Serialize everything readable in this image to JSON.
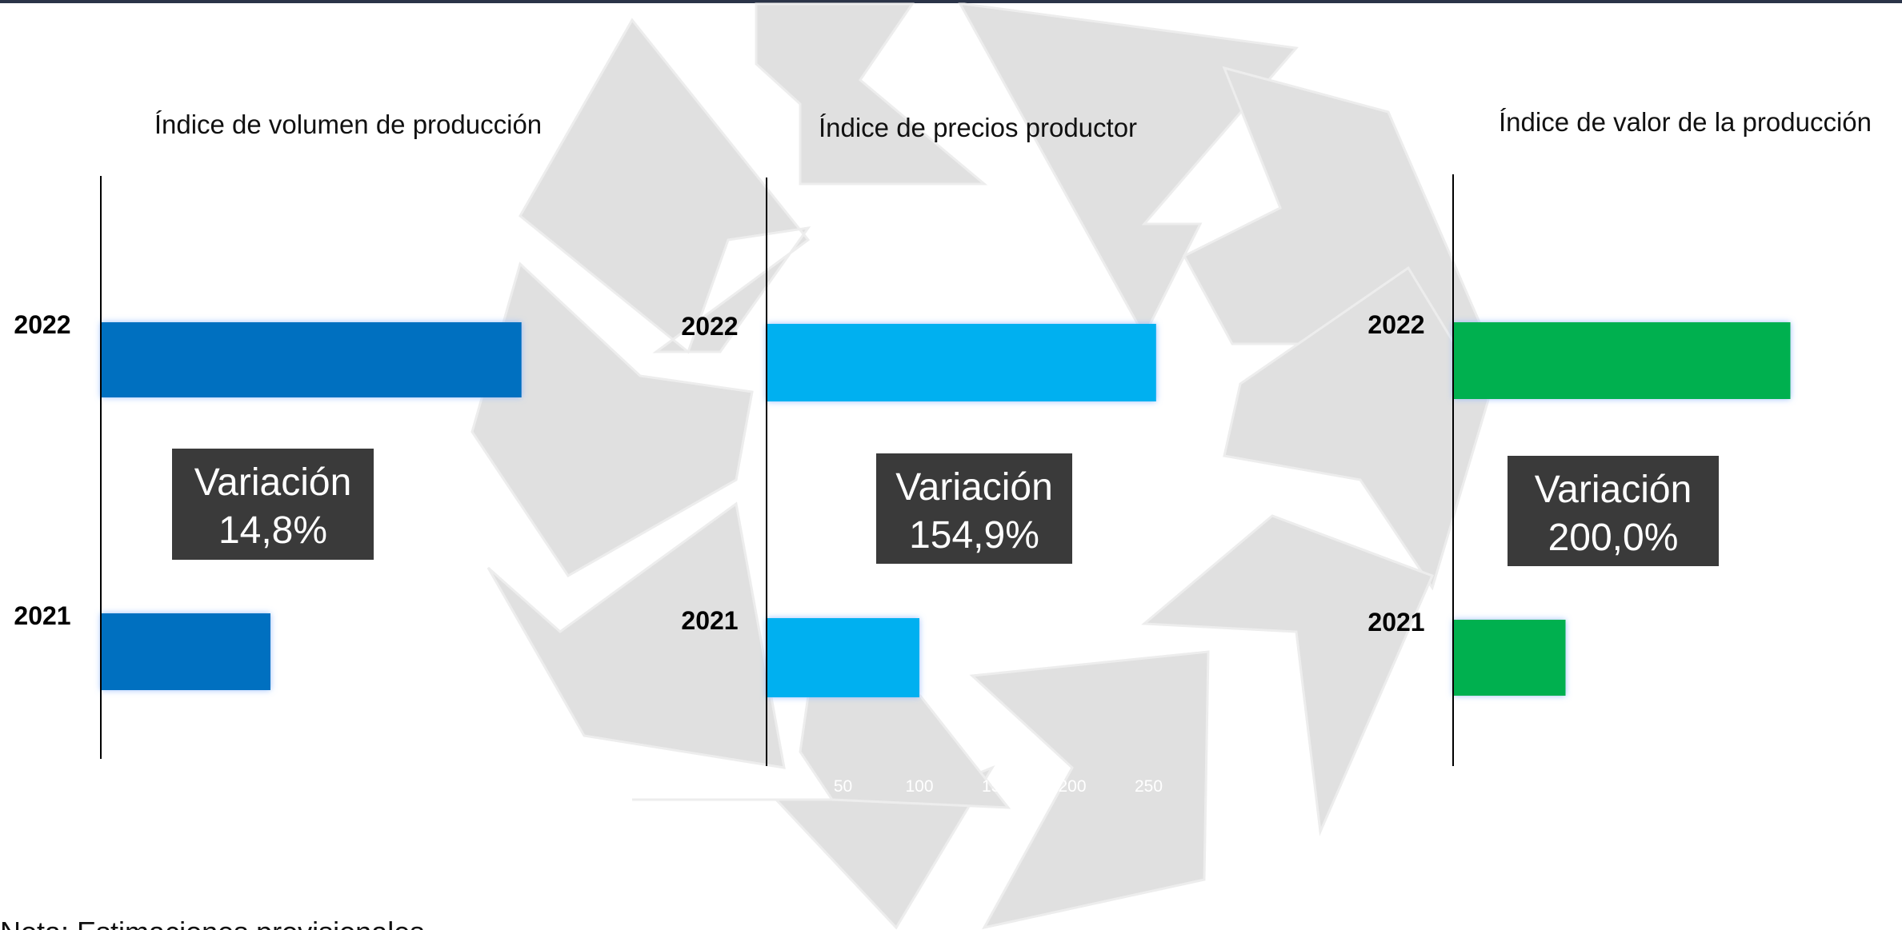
{
  "chart_data": [
    {
      "type": "bar",
      "orientation": "horizontal",
      "title": "Índice de volumen de producción",
      "categories": [
        "2022",
        "2021"
      ],
      "values": [
        114.8,
        100
      ],
      "color": "#0070c0",
      "xlim": [
        90,
        115
      ],
      "annotation": [
        "Variación",
        "14,8%"
      ]
    },
    {
      "type": "bar",
      "orientation": "horizontal",
      "title": "Índice de precios productor",
      "categories": [
        "2022",
        "2021"
      ],
      "values": [
        254.9,
        100
      ],
      "color": "#00b0f0",
      "xlim": [
        0,
        300
      ],
      "xticks": [
        50,
        100,
        150,
        200,
        250
      ],
      "annotation": [
        "Variación",
        "154,9%"
      ]
    },
    {
      "type": "bar",
      "orientation": "horizontal",
      "title": "Índice de valor de la producción",
      "categories": [
        "2022",
        "2021"
      ],
      "values": [
        300,
        100
      ],
      "color": "#00b050",
      "xlim": [
        0,
        400
      ],
      "annotation": [
        "Variación",
        "200,0%"
      ]
    }
  ],
  "note": "Nota: Estimaciones provisionales"
}
